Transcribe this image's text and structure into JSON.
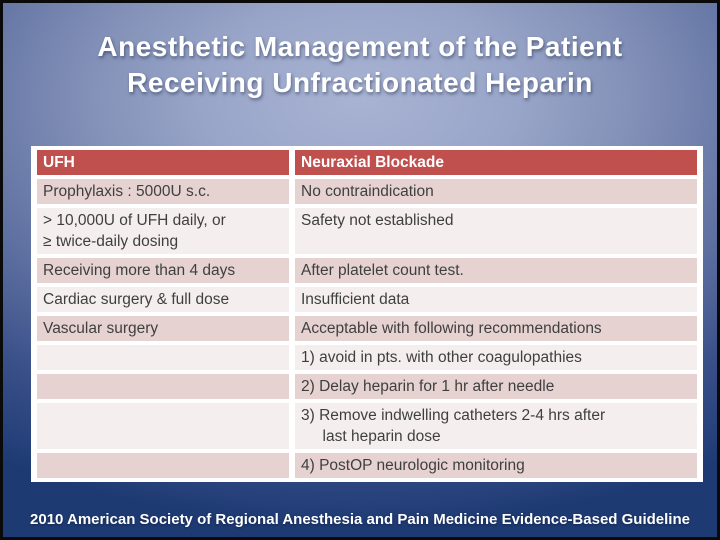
{
  "slide": {
    "title_line1": "Anesthetic Management of the Patient",
    "title_line2": "Receiving Unfractionated Heparin",
    "footer": "2010 American Society of Regional Anesthesia and Pain Medicine Evidence-Based Guideline"
  },
  "table": {
    "headers": {
      "ufh": "UFH",
      "neuraxial": "Neuraxial Blockade"
    },
    "rows": [
      {
        "ufh": "Prophylaxis : 5000U s.c.",
        "neuraxial": "No contraindication"
      },
      {
        "ufh": "> 10,000U of UFH daily, or\n≥ twice-daily dosing",
        "neuraxial": "Safety not established"
      },
      {
        "ufh": "Receiving more than 4 days",
        "neuraxial": "After platelet count test."
      },
      {
        "ufh": "Cardiac surgery & full dose",
        "neuraxial": "Insufficient data"
      },
      {
        "ufh": "Vascular surgery",
        "neuraxial": "Acceptable with following recommendations"
      },
      {
        "ufh": "",
        "neuraxial": "1) avoid in pts. with other coagulopathies"
      },
      {
        "ufh": "",
        "neuraxial": "2) Delay heparin for 1 hr after needle"
      },
      {
        "ufh": "",
        "neuraxial": "3) Remove indwelling catheters 2-4 hrs after\n     last heparin dose"
      },
      {
        "ufh": "",
        "neuraxial": "4) PostOP neurologic monitoring"
      }
    ]
  },
  "colors": {
    "header_accent": "#c0504d",
    "row_band_dark": "#e7d2d2",
    "row_band_light": "#f5eeee",
    "cell_text": "#3f3f3f",
    "background_center": "#a8b3d3",
    "background_edge": "#1e3a72",
    "title_text": "#ffffff"
  }
}
